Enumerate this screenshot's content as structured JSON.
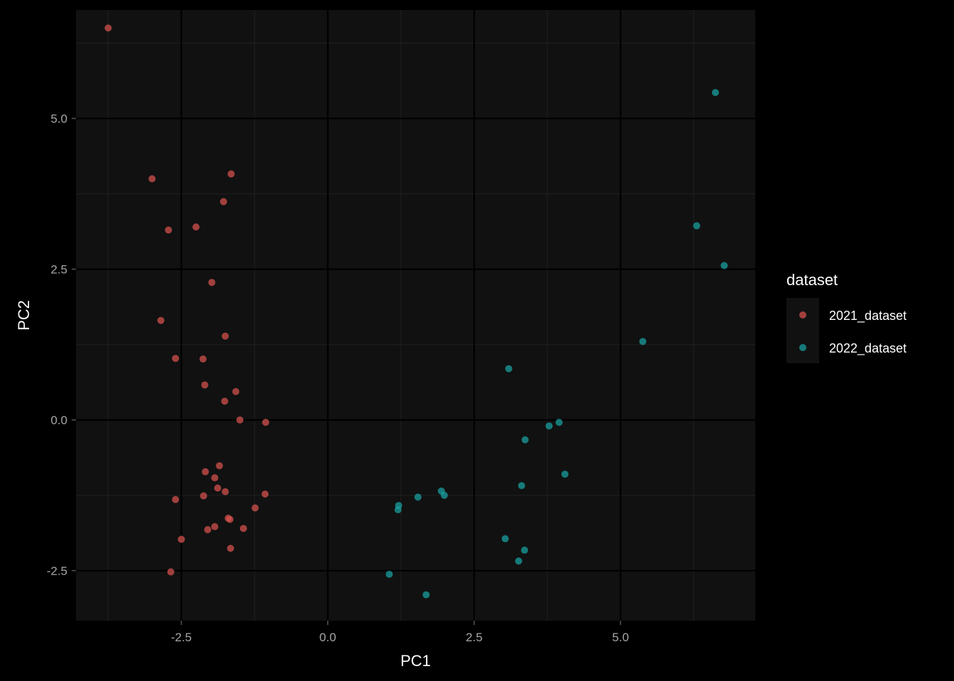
{
  "chart_data": {
    "type": "scatter",
    "xlabel": "PC1",
    "ylabel": "PC2",
    "xlim": [
      -4.3,
      7.3
    ],
    "ylim": [
      -3.33,
      6.8
    ],
    "x_ticks": [
      -2.5,
      0.0,
      2.5,
      5.0
    ],
    "x_tick_labels": [
      "-2.5",
      "0.0",
      "2.5",
      "5.0"
    ],
    "y_ticks": [
      -2.5,
      0.0,
      2.5,
      5.0
    ],
    "y_tick_labels": [
      "-2.5",
      "0.0",
      "2.5",
      "5.0"
    ],
    "grid": true,
    "legend": {
      "title": "dataset",
      "position": "right"
    },
    "colors": {
      "background": "#000000",
      "panel": "#111111",
      "grid_major": "#000000",
      "grid_minor": "#1e1e1e"
    },
    "series": [
      {
        "name": "2021_dataset",
        "color": "#d9534f",
        "points": [
          [
            -3.75,
            6.5
          ],
          [
            -3.0,
            4.0
          ],
          [
            -1.65,
            4.08
          ],
          [
            -1.78,
            3.62
          ],
          [
            -2.72,
            3.15
          ],
          [
            -2.25,
            3.2
          ],
          [
            -1.98,
            2.28
          ],
          [
            -2.85,
            1.65
          ],
          [
            -1.75,
            1.39
          ],
          [
            -2.6,
            1.02
          ],
          [
            -2.13,
            1.01
          ],
          [
            -2.1,
            0.58
          ],
          [
            -1.57,
            0.47
          ],
          [
            -1.76,
            0.31
          ],
          [
            -1.5,
            0.0
          ],
          [
            -1.06,
            -0.04
          ],
          [
            -1.85,
            -0.76
          ],
          [
            -2.09,
            -0.86
          ],
          [
            -1.93,
            -0.96
          ],
          [
            -1.88,
            -1.13
          ],
          [
            -1.75,
            -1.19
          ],
          [
            -2.12,
            -1.26
          ],
          [
            -1.07,
            -1.23
          ],
          [
            -2.6,
            -1.32
          ],
          [
            -1.24,
            -1.46
          ],
          [
            -1.7,
            -1.63
          ],
          [
            -1.67,
            -1.65
          ],
          [
            -1.93,
            -1.77
          ],
          [
            -2.05,
            -1.82
          ],
          [
            -1.44,
            -1.8
          ],
          [
            -2.5,
            -1.98
          ],
          [
            -1.66,
            -2.13
          ],
          [
            -2.68,
            -2.52
          ]
        ]
      },
      {
        "name": "2022_dataset",
        "color": "#1aa3a3",
        "points": [
          [
            6.62,
            5.43
          ],
          [
            6.3,
            3.22
          ],
          [
            6.77,
            2.56
          ],
          [
            5.38,
            1.3
          ],
          [
            3.09,
            0.85
          ],
          [
            3.78,
            -0.1
          ],
          [
            3.95,
            -0.04
          ],
          [
            3.37,
            -0.33
          ],
          [
            4.05,
            -0.9
          ],
          [
            3.31,
            -1.09
          ],
          [
            1.94,
            -1.18
          ],
          [
            1.99,
            -1.25
          ],
          [
            1.54,
            -1.28
          ],
          [
            1.21,
            -1.42
          ],
          [
            1.2,
            -1.49
          ],
          [
            3.03,
            -1.97
          ],
          [
            3.36,
            -2.16
          ],
          [
            3.26,
            -2.34
          ],
          [
            1.05,
            -2.56
          ],
          [
            1.68,
            -2.9
          ]
        ]
      }
    ]
  }
}
